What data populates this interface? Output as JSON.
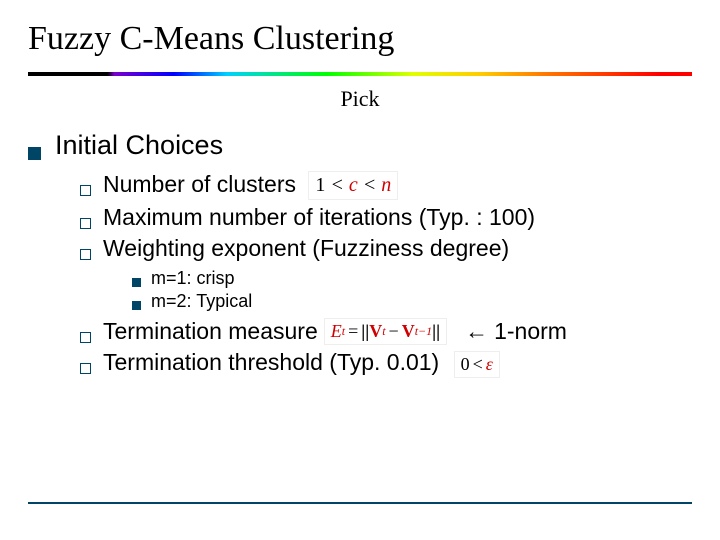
{
  "title": "Fuzzy C-Means Clustering",
  "subtitle": "Pick",
  "heading": "Initial Choices",
  "items": {
    "clusters": {
      "label": "Number of clusters",
      "math": "1 < c < n"
    },
    "maxiter": {
      "label": "Maximum number of iterations (Typ. : 100)"
    },
    "weight": {
      "label": "Weighting exponent (Fuzziness degree)"
    },
    "sub": {
      "m1": "m=1: crisp",
      "m2": "m=2: Typical"
    },
    "term_measure": {
      "label": "Termination measure",
      "arrow": "←",
      "norm": "1-norm"
    },
    "term_thresh": {
      "label": "Termination threshold (Typ. 0.01)",
      "math_lt": "<",
      "math_zero": "0",
      "math_eps": "ε"
    }
  },
  "colors": {
    "accent": "#004466",
    "math_red": "#d00000",
    "bg": "#ffffff"
  }
}
